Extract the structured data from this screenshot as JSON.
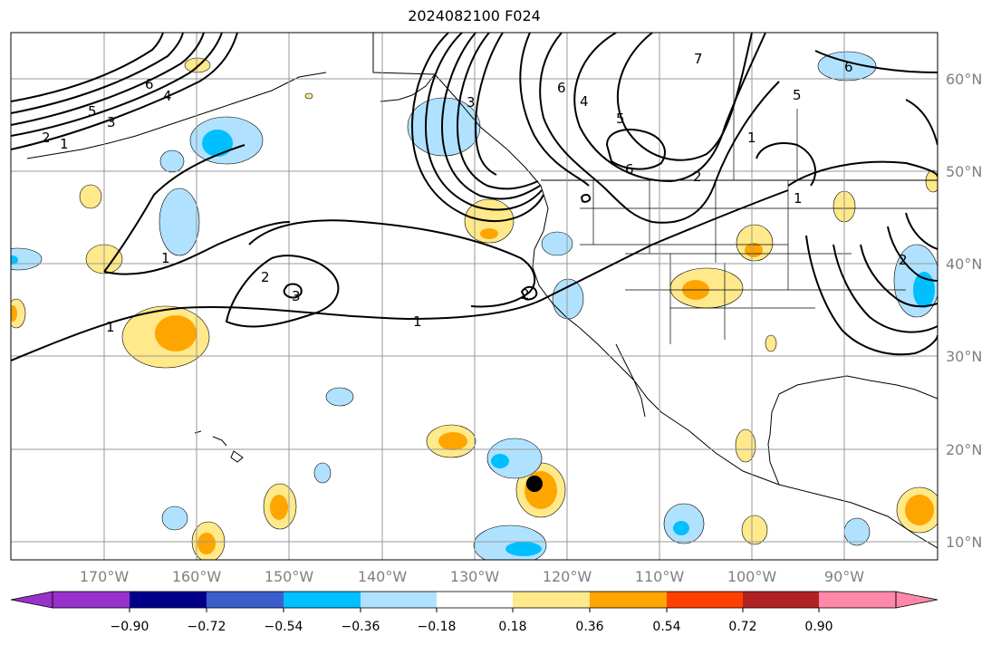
{
  "title": "2024082100 F024",
  "lon_labels": [
    "170°W",
    "160°W",
    "150°W",
    "140°W",
    "130°W",
    "120°W",
    "110°W",
    "100°W",
    "90°W"
  ],
  "lat_labels": [
    "60°N",
    "50°N",
    "40°N",
    "30°N",
    "20°N",
    "10°N"
  ],
  "colorbar": {
    "ticks": [
      "−0.90",
      "−0.72",
      "−0.54",
      "−0.36",
      "−0.18",
      "0.18",
      "0.36",
      "0.54",
      "0.72",
      "0.90"
    ],
    "colors": [
      "#9932cc",
      "#00008b",
      "#3a5fcd",
      "#00bfff",
      "#b0e2ff",
      "#ffffff",
      "#ffe98a",
      "#ffa500",
      "#ff4000",
      "#b22222",
      "#ff88aa"
    ]
  },
  "contour_labels": [
    "6",
    "4",
    "5",
    "3",
    "2",
    "1",
    "1",
    "2",
    "3",
    "1",
    "2",
    "3",
    "6",
    "4",
    "5",
    "6",
    "7",
    "2",
    "1",
    "1",
    "5",
    "6",
    "1",
    "2"
  ],
  "marker": "hurricane-center-dot"
}
